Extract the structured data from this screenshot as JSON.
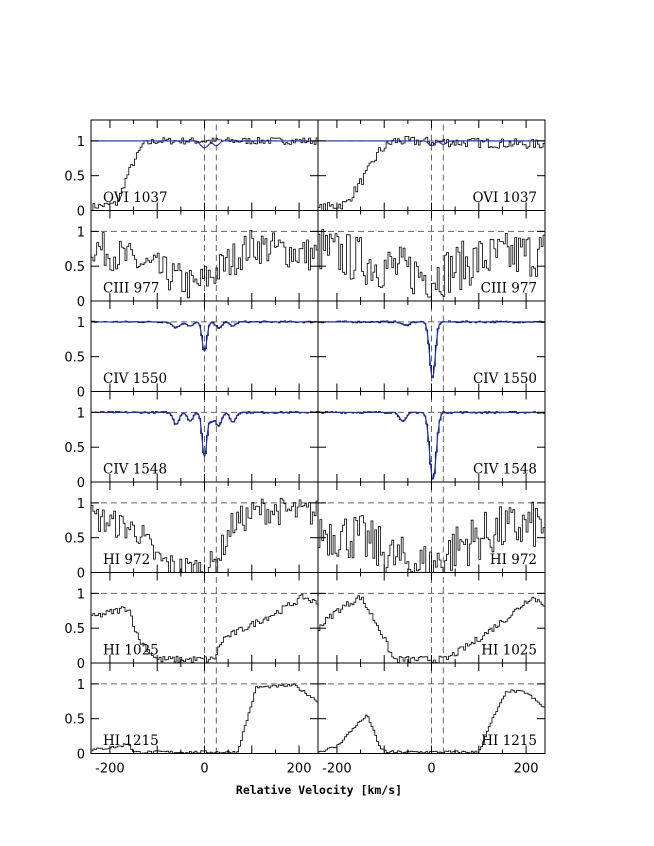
{
  "chart_data": {
    "type": "line",
    "xlabel": "Relative Velocity [km/s]",
    "ylabel": "",
    "xlim": [
      -240,
      240
    ],
    "ylim": [
      0,
      1.3
    ],
    "x_ticks": [
      -200,
      0,
      200
    ],
    "y_ticks": [
      0,
      0.5,
      1
    ],
    "reference_velocities": [
      0,
      25
    ],
    "continuum_level": 1,
    "colors": {
      "data": "#000000",
      "model": "#1f2fb0",
      "reference": "#666666"
    },
    "columns": [
      "left",
      "right"
    ],
    "rows": [
      {
        "label": "OVI  1037",
        "label_side": [
          "left",
          "right"
        ],
        "model": true,
        "model_dips": {
          "left": [
            [
              0,
              0.1,
              8
            ],
            [
              25,
              0.07,
              6
            ]
          ],
          "right": [
            [
              0,
              0.07,
              6
            ],
            [
              25,
              0.05,
              6
            ]
          ]
        }
      },
      {
        "label": "CIII  977",
        "label_side": [
          "left",
          "right"
        ],
        "model": false
      },
      {
        "label": "CIV  1550",
        "label_side": [
          "left",
          "right"
        ],
        "model": true,
        "model_dips": {
          "left": [
            [
              0,
              0.42,
              5
            ],
            [
              -60,
              0.08,
              8
            ],
            [
              -30,
              0.06,
              7
            ],
            [
              30,
              0.08,
              7
            ],
            [
              60,
              0.06,
              6
            ]
          ],
          "right": [
            [
              2,
              0.8,
              6
            ],
            [
              -55,
              0.05,
              8
            ]
          ]
        }
      },
      {
        "label": "CIV  1548",
        "label_side": [
          "left",
          "right"
        ],
        "model": true,
        "model_dips": {
          "left": [
            [
              0,
              0.63,
              5
            ],
            [
              -60,
              0.17,
              6
            ],
            [
              -30,
              0.12,
              6
            ],
            [
              30,
              0.2,
              6
            ],
            [
              60,
              0.14,
              6
            ],
            [
              15,
              0.12,
              5
            ]
          ],
          "right": [
            [
              3,
              0.96,
              7
            ],
            [
              -60,
              0.13,
              7
            ]
          ]
        }
      },
      {
        "label": "HI  972",
        "label_side": [
          "left",
          "right"
        ],
        "model": false
      },
      {
        "label": "HI  1025",
        "label_side": [
          "left",
          "right"
        ],
        "model": false
      },
      {
        "label": "HI  1215",
        "label_side": [
          "left",
          "right"
        ],
        "model": false
      }
    ],
    "profile_shapes": [
      {
        "row": "OVI  1037",
        "column": "left",
        "velocity_range": [
          -240,
          240
        ],
        "level_knots": [
          [
            -240,
            0.05
          ],
          [
            -185,
            0.1
          ],
          [
            -160,
            0.55
          ],
          [
            -130,
            0.95
          ],
          [
            -100,
            1.0
          ],
          [
            240,
            1.0
          ]
        ],
        "noise": 0.05
      },
      {
        "row": "OVI  1037",
        "column": "right",
        "velocity_range": [
          -240,
          240
        ],
        "level_knots": [
          [
            -240,
            0.02
          ],
          [
            -180,
            0.1
          ],
          [
            -140,
            0.5
          ],
          [
            -110,
            0.85
          ],
          [
            -80,
            1.0
          ],
          [
            240,
            0.95
          ]
        ],
        "noise": 0.07
      },
      {
        "row": "CIII  977",
        "column": "left",
        "velocity_range": [
          -240,
          240
        ],
        "level_knots": [
          [
            -240,
            0.8
          ],
          [
            -100,
            0.45
          ],
          [
            -20,
            0.2
          ],
          [
            40,
            0.5
          ],
          [
            100,
            0.8
          ],
          [
            240,
            0.65
          ]
        ],
        "noise": 0.25
      },
      {
        "row": "CIII  977",
        "column": "right",
        "velocity_range": [
          -240,
          240
        ],
        "level_knots": [
          [
            -240,
            0.75
          ],
          [
            -100,
            0.5
          ],
          [
            0,
            0.35
          ],
          [
            100,
            0.6
          ],
          [
            240,
            0.7
          ]
        ],
        "noise": 0.35
      },
      {
        "row": "HI  972",
        "column": "left",
        "velocity_range": [
          -240,
          240
        ],
        "level_knots": [
          [
            -240,
            0.8
          ],
          [
            -140,
            0.6
          ],
          [
            -100,
            0.2
          ],
          [
            -60,
            0.05
          ],
          [
            0,
            0.05
          ],
          [
            25,
            0.15
          ],
          [
            60,
            0.7
          ],
          [
            120,
            0.9
          ],
          [
            240,
            0.85
          ]
        ],
        "noise": 0.2
      },
      {
        "row": "HI  972",
        "column": "right",
        "velocity_range": [
          -240,
          240
        ],
        "level_knots": [
          [
            -240,
            0.6
          ],
          [
            -150,
            0.5
          ],
          [
            -80,
            0.2
          ],
          [
            0,
            0.08
          ],
          [
            60,
            0.4
          ],
          [
            140,
            0.6
          ],
          [
            240,
            0.7
          ]
        ],
        "noise": 0.35
      },
      {
        "row": "HI  1025",
        "column": "left",
        "velocity_range": [
          -240,
          240
        ],
        "level_knots": [
          [
            -240,
            0.65
          ],
          [
            -160,
            0.8
          ],
          [
            -140,
            0.35
          ],
          [
            -100,
            0.05
          ],
          [
            20,
            0.05
          ],
          [
            40,
            0.35
          ],
          [
            100,
            0.55
          ],
          [
            160,
            0.75
          ],
          [
            210,
            0.95
          ],
          [
            240,
            0.85
          ]
        ],
        "noise": 0.05
      },
      {
        "row": "HI  1025",
        "column": "right",
        "velocity_range": [
          -240,
          240
        ],
        "level_knots": [
          [
            -240,
            0.5
          ],
          [
            -200,
            0.75
          ],
          [
            -150,
            0.95
          ],
          [
            -110,
            0.5
          ],
          [
            -80,
            0.05
          ],
          [
            30,
            0.05
          ],
          [
            90,
            0.3
          ],
          [
            170,
            0.7
          ],
          [
            210,
            0.95
          ],
          [
            240,
            0.85
          ]
        ],
        "noise": 0.05
      },
      {
        "row": "HI  1215",
        "column": "left",
        "velocity_range": [
          -240,
          240
        ],
        "level_knots": [
          [
            -240,
            0.05
          ],
          [
            -180,
            0.1
          ],
          [
            -160,
            0.15
          ],
          [
            -150,
            0.02
          ],
          [
            70,
            0.02
          ],
          [
            95,
            0.6
          ],
          [
            110,
            0.95
          ],
          [
            190,
            0.98
          ],
          [
            240,
            0.75
          ]
        ],
        "noise": 0.02
      },
      {
        "row": "HI  1215",
        "column": "right",
        "velocity_range": [
          -240,
          240
        ],
        "level_knots": [
          [
            -240,
            0.02
          ],
          [
            -200,
            0.1
          ],
          [
            -160,
            0.4
          ],
          [
            -135,
            0.55
          ],
          [
            -110,
            0.1
          ],
          [
            -95,
            0.02
          ],
          [
            100,
            0.02
          ],
          [
            130,
            0.5
          ],
          [
            160,
            0.9
          ],
          [
            200,
            0.88
          ],
          [
            240,
            0.65
          ]
        ],
        "noise": 0.02
      }
    ]
  }
}
